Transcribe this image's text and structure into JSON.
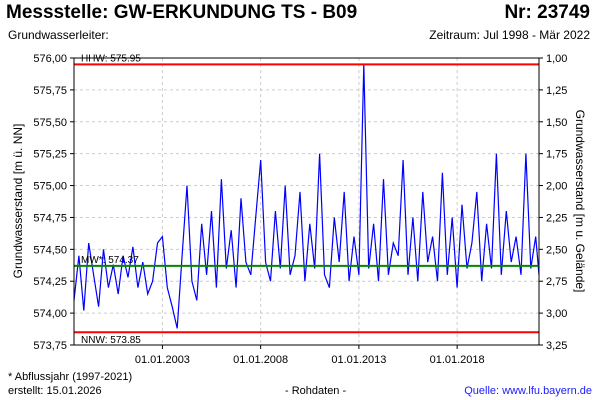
{
  "header": {
    "title": "Messstelle: GW-ERKUNDUNG TS - B09",
    "nr": "Nr: 23749",
    "aquifer": "Grundwasserleiter:",
    "period": "Zeitraum: Jul 1998 - Mär 2022"
  },
  "footer": {
    "footnote": "* Abflussjahr (1997-2021)",
    "created": "erstellt:  15.01.2026",
    "raw": "- Rohdaten -",
    "source": "Quelle:  www.lfu.bayern.de"
  },
  "colors": {
    "series": "#0000ff",
    "hhw": "#ff0000",
    "nnw": "#ff0000",
    "mw": "#008800",
    "grid": "#cccccc"
  },
  "chart_data": {
    "type": "line",
    "xlabel": "",
    "ylabel": "Grundwasserstand [m ü. NN]",
    "ylabel_right": "Grundwasserstand [m u. Gelände]",
    "x_start": "1998-07",
    "x_end": "2022-03",
    "ylim": [
      573.75,
      576.0
    ],
    "ylim_right": [
      1.0,
      3.25
    ],
    "x_ticks": [
      "01.01.2003",
      "01.01.2008",
      "01.01.2013",
      "01.01.2018"
    ],
    "y_ticks": [
      "576,00",
      "575,75",
      "575,50",
      "575,25",
      "575,00",
      "574,75",
      "574,50",
      "574,25",
      "574,00",
      "573,75"
    ],
    "y_ticks_right": [
      "1,00",
      "1,25",
      "1,50",
      "1,75",
      "2,00",
      "2,25",
      "2,50",
      "2,75",
      "3,00",
      "3,25"
    ],
    "grid": true,
    "reference_lines": [
      {
        "label": "HHW: 575.95",
        "value": 575.95
      },
      {
        "label": "MW*: 574.37",
        "value": 574.37
      },
      {
        "label": "NNW: 573.85",
        "value": 573.85
      }
    ],
    "series": [
      {
        "x": [
          "1998-07",
          "1998-10",
          "1999-01",
          "1999-04",
          "1999-07",
          "1999-10",
          "2000-01",
          "2000-04",
          "2000-07",
          "2000-10",
          "2001-01",
          "2001-04",
          "2001-07",
          "2001-10",
          "2002-01",
          "2002-04",
          "2002-07",
          "2002-10",
          "2003-01",
          "2003-04",
          "2003-07",
          "2003-10",
          "2004-01",
          "2004-04",
          "2004-07",
          "2004-10",
          "2005-01",
          "2005-04",
          "2005-07",
          "2005-10",
          "2006-01",
          "2006-04",
          "2006-07",
          "2006-10",
          "2007-01",
          "2007-04",
          "2007-07",
          "2007-10",
          "2008-01",
          "2008-04",
          "2008-07",
          "2008-10",
          "2009-01",
          "2009-04",
          "2009-07",
          "2009-10",
          "2010-01",
          "2010-04",
          "2010-07",
          "2010-10",
          "2011-01",
          "2011-04",
          "2011-07",
          "2011-10",
          "2012-01",
          "2012-04",
          "2012-07",
          "2012-10",
          "2013-01",
          "2013-04",
          "2013-07",
          "2013-10",
          "2014-01",
          "2014-04",
          "2014-07",
          "2014-10",
          "2015-01",
          "2015-04",
          "2015-07",
          "2015-10",
          "2016-01",
          "2016-04",
          "2016-07",
          "2016-10",
          "2017-01",
          "2017-04",
          "2017-07",
          "2017-10",
          "2018-01",
          "2018-04",
          "2018-07",
          "2018-10",
          "2019-01",
          "2019-04",
          "2019-07",
          "2019-10",
          "2020-01",
          "2020-04",
          "2020-07",
          "2020-10",
          "2021-01",
          "2021-04",
          "2021-07",
          "2021-10",
          "2022-01",
          "2022-03"
        ],
        "values": [
          574.1,
          574.45,
          574.02,
          574.55,
          574.3,
          574.05,
          574.5,
          574.2,
          574.38,
          574.15,
          574.45,
          574.28,
          574.52,
          574.2,
          574.4,
          574.15,
          574.25,
          574.55,
          574.6,
          574.2,
          574.05,
          573.88,
          574.45,
          575.0,
          574.25,
          574.1,
          574.7,
          574.3,
          574.8,
          574.2,
          575.05,
          574.35,
          574.65,
          574.2,
          574.9,
          574.4,
          574.3,
          574.75,
          575.2,
          574.4,
          574.25,
          574.8,
          574.35,
          575.0,
          574.3,
          574.45,
          574.95,
          574.25,
          574.7,
          574.35,
          575.25,
          574.3,
          574.2,
          574.75,
          574.4,
          574.95,
          574.25,
          574.6,
          574.3,
          575.95,
          574.35,
          574.7,
          574.25,
          575.05,
          574.3,
          574.55,
          574.45,
          575.2,
          574.3,
          574.75,
          574.25,
          574.95,
          574.4,
          574.6,
          574.25,
          575.1,
          574.3,
          574.75,
          574.2,
          574.85,
          574.35,
          574.55,
          574.95,
          574.25,
          574.7,
          574.35,
          575.25,
          574.3,
          574.8,
          574.4,
          574.6,
          574.3,
          575.25,
          574.35,
          574.6,
          574.3
        ]
      }
    ]
  }
}
